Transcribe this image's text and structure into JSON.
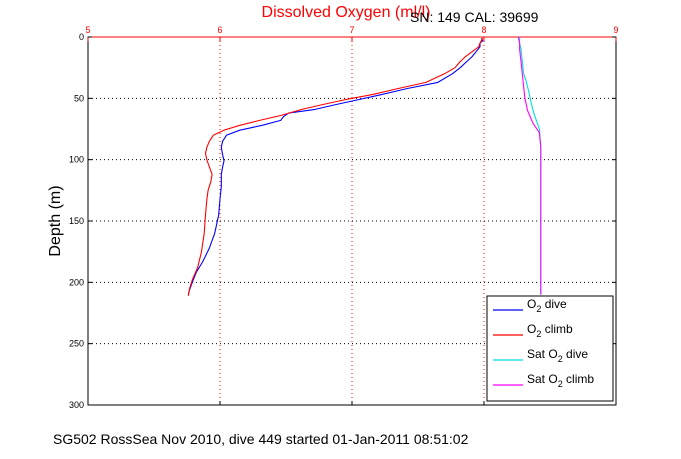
{
  "chart_data": {
    "type": "line",
    "title": "Dissolved Oxygen (ml/l)",
    "subtitle": "SN: 149  CAL: 39699",
    "xlabel": "",
    "ylabel": "Depth (m)",
    "xlim": [
      5,
      9
    ],
    "ylim": [
      0,
      300
    ],
    "x_axis_position": "top",
    "y_reversed": true,
    "grid": true,
    "x_ticks": [
      5,
      6,
      7,
      8,
      9
    ],
    "y_ticks": [
      0,
      50,
      100,
      150,
      200,
      250,
      300
    ],
    "legend": {
      "position": "bottom-right",
      "entries": [
        {
          "prefix": "O",
          "sub": "2",
          "suffix": " dive",
          "color": "#0000ff"
        },
        {
          "prefix": "O",
          "sub": "2",
          "suffix": " climb",
          "color": "#ff0000"
        },
        {
          "prefix": "Sat O",
          "sub": "2",
          "suffix": " dive",
          "color": "#00dddd"
        },
        {
          "prefix": "Sat O",
          "sub": "2",
          "suffix": " climb",
          "color": "#ff00ff"
        }
      ]
    },
    "series": [
      {
        "color": "#0000ff",
        "points": [
          [
            7.98,
            1
          ],
          [
            7.99,
            3
          ],
          [
            7.97,
            5
          ],
          [
            7.97,
            8
          ],
          [
            7.94,
            12
          ],
          [
            7.91,
            16
          ],
          [
            7.87,
            20
          ],
          [
            7.82,
            25
          ],
          [
            7.76,
            30
          ],
          [
            7.65,
            37
          ],
          [
            7.42,
            42
          ],
          [
            7.22,
            47
          ],
          [
            7.05,
            51
          ],
          [
            6.88,
            55
          ],
          [
            6.72,
            59
          ],
          [
            6.52,
            62
          ],
          [
            6.48,
            65
          ],
          [
            6.46,
            68
          ],
          [
            6.32,
            72
          ],
          [
            6.15,
            76
          ],
          [
            6.05,
            80
          ],
          [
            6.02,
            85
          ],
          [
            6.01,
            90
          ],
          [
            6.02,
            96
          ],
          [
            6.03,
            101
          ],
          [
            6.02,
            106
          ],
          [
            6.01,
            112
          ],
          [
            6.01,
            122
          ],
          [
            6.0,
            132
          ],
          [
            5.99,
            145
          ],
          [
            5.96,
            160
          ],
          [
            5.92,
            172
          ],
          [
            5.87,
            183
          ],
          [
            5.82,
            192
          ],
          [
            5.79,
            200
          ],
          [
            5.77,
            206
          ],
          [
            5.76,
            210
          ]
        ]
      },
      {
        "color": "#ff0000",
        "points": [
          [
            7.99,
            1
          ],
          [
            7.98,
            3
          ],
          [
            7.97,
            5
          ],
          [
            7.96,
            8
          ],
          [
            7.91,
            12
          ],
          [
            7.86,
            16
          ],
          [
            7.82,
            20
          ],
          [
            7.78,
            25
          ],
          [
            7.7,
            30
          ],
          [
            7.56,
            37
          ],
          [
            7.35,
            42
          ],
          [
            7.15,
            47
          ],
          [
            6.95,
            51
          ],
          [
            6.78,
            55
          ],
          [
            6.62,
            59
          ],
          [
            6.46,
            64
          ],
          [
            6.3,
            68
          ],
          [
            6.15,
            72
          ],
          [
            6.03,
            76
          ],
          [
            5.95,
            80
          ],
          [
            5.92,
            85
          ],
          [
            5.9,
            90
          ],
          [
            5.89,
            95
          ],
          [
            5.9,
            100
          ],
          [
            5.92,
            106
          ],
          [
            5.94,
            112
          ],
          [
            5.93,
            118
          ],
          [
            5.91,
            125
          ],
          [
            5.9,
            133
          ],
          [
            5.89,
            145
          ],
          [
            5.88,
            160
          ],
          [
            5.86,
            175
          ],
          [
            5.83,
            188
          ],
          [
            5.79,
            198
          ],
          [
            5.77,
            205
          ],
          [
            5.76,
            211
          ]
        ]
      },
      {
        "color": "#00dddd",
        "points": [
          [
            8.27,
            0
          ],
          [
            8.27,
            5
          ],
          [
            8.28,
            10
          ],
          [
            8.29,
            20
          ],
          [
            8.3,
            30
          ],
          [
            8.32,
            36
          ],
          [
            8.34,
            45
          ],
          [
            8.36,
            55
          ],
          [
            8.38,
            63
          ],
          [
            8.42,
            75
          ],
          [
            8.43,
            90
          ],
          [
            8.43,
            120
          ],
          [
            8.43,
            150
          ],
          [
            8.43,
            180
          ],
          [
            8.43,
            210
          ]
        ]
      },
      {
        "color": "#ff00ff",
        "points": [
          [
            8.26,
            0
          ],
          [
            8.27,
            5
          ],
          [
            8.27,
            10
          ],
          [
            8.28,
            20
          ],
          [
            8.29,
            30
          ],
          [
            8.3,
            40
          ],
          [
            8.31,
            50
          ],
          [
            8.33,
            60
          ],
          [
            8.37,
            70
          ],
          [
            8.42,
            78
          ],
          [
            8.43,
            90
          ],
          [
            8.43,
            120
          ],
          [
            8.43,
            150
          ],
          [
            8.43,
            180
          ],
          [
            8.43,
            210
          ]
        ]
      }
    ]
  },
  "footer": "SG502 RossSea Nov 2010, dive 449 started 01-Jan-2011 08:51:02"
}
